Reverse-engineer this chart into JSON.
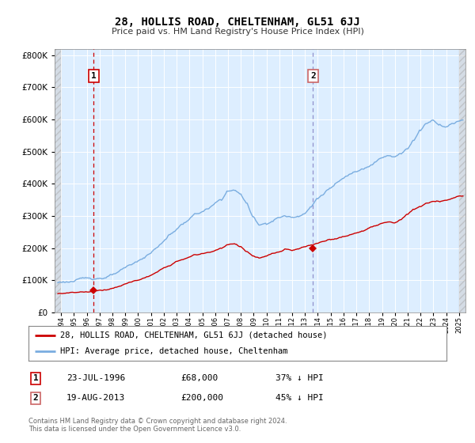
{
  "title": "28, HOLLIS ROAD, CHELTENHAM, GL51 6JJ",
  "subtitle": "Price paid vs. HM Land Registry's House Price Index (HPI)",
  "legend_line1": "28, HOLLIS ROAD, CHELTENHAM, GL51 6JJ (detached house)",
  "legend_line2": "HPI: Average price, detached house, Cheltenham",
  "annotation1_label": "1",
  "annotation1_date": "23-JUL-1996",
  "annotation1_price": "£68,000",
  "annotation1_hpi": "37% ↓ HPI",
  "annotation1_year": 1996.55,
  "annotation1_value": 68000,
  "annotation2_label": "2",
  "annotation2_date": "19-AUG-2013",
  "annotation2_price": "£200,000",
  "annotation2_hpi": "45% ↓ HPI",
  "annotation2_year": 2013.63,
  "annotation2_value": 200000,
  "hpi_color": "#7aade0",
  "price_color": "#cc0000",
  "vline1_color": "#cc0000",
  "vline2_color": "#9090cc",
  "plot_bg": "#ddeeff",
  "grid_color": "#c8d8e8",
  "ylim": [
    0,
    820000
  ],
  "xlim_start": 1993.5,
  "xlim_end": 2025.5,
  "footer": "Contains HM Land Registry data © Crown copyright and database right 2024.\nThis data is licensed under the Open Government Licence v3.0."
}
